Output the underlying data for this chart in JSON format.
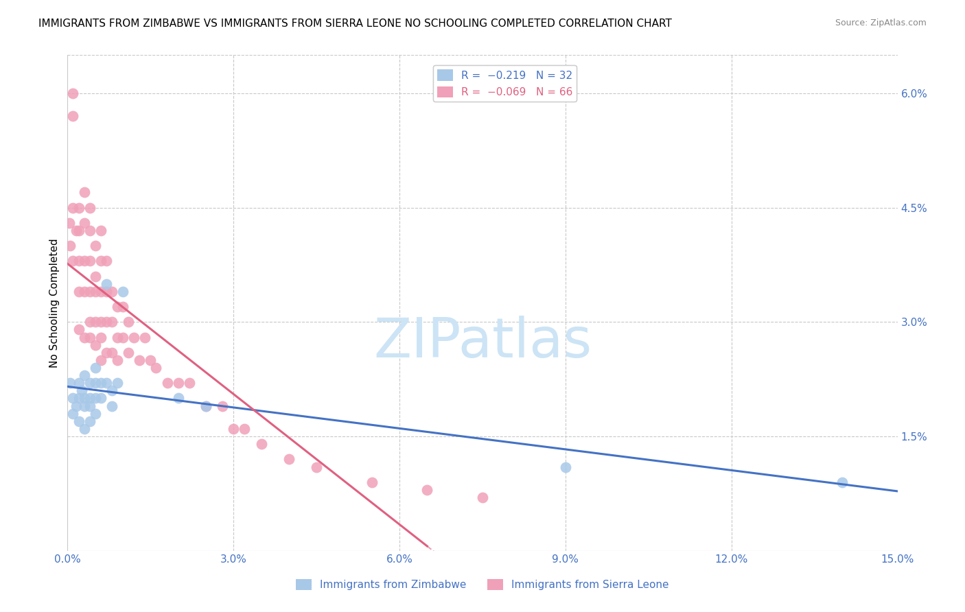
{
  "title": "IMMIGRANTS FROM ZIMBABWE VS IMMIGRANTS FROM SIERRA LEONE NO SCHOOLING COMPLETED CORRELATION CHART",
  "source": "Source: ZipAtlas.com",
  "ylabel": "No Schooling Completed",
  "xlim": [
    0.0,
    0.15
  ],
  "ylim": [
    0.0,
    0.065
  ],
  "xticks": [
    0.0,
    0.03,
    0.06,
    0.09,
    0.12,
    0.15
  ],
  "xtick_labels": [
    "0.0%",
    "3.0%",
    "6.0%",
    "9.0%",
    "12.0%",
    "15.0%"
  ],
  "yticks": [
    0.015,
    0.03,
    0.045,
    0.06
  ],
  "ytick_labels": [
    "1.5%",
    "3.0%",
    "4.5%",
    "6.0%"
  ],
  "watermark": "ZIPatlas",
  "watermark_color": "#cce4f5",
  "title_fontsize": 11,
  "axis_color": "#4472c4",
  "background_color": "#ffffff",
  "grid_color": "#c8c8c8",
  "zimbabwe_color": "#a8c8e8",
  "sierra_leone_color": "#f0a0b8",
  "zimbabwe_line_color": "#4472c4",
  "sierra_leone_line_color": "#e06080",
  "zimbabwe_x": [
    0.0005,
    0.001,
    0.001,
    0.0015,
    0.002,
    0.002,
    0.002,
    0.0025,
    0.003,
    0.003,
    0.003,
    0.003,
    0.004,
    0.004,
    0.004,
    0.004,
    0.005,
    0.005,
    0.005,
    0.005,
    0.006,
    0.006,
    0.007,
    0.007,
    0.008,
    0.008,
    0.009,
    0.01,
    0.02,
    0.025,
    0.09,
    0.14
  ],
  "zimbabwe_y": [
    0.022,
    0.02,
    0.018,
    0.019,
    0.022,
    0.02,
    0.017,
    0.021,
    0.023,
    0.02,
    0.019,
    0.016,
    0.022,
    0.02,
    0.019,
    0.017,
    0.024,
    0.022,
    0.02,
    0.018,
    0.022,
    0.02,
    0.035,
    0.022,
    0.021,
    0.019,
    0.022,
    0.034,
    0.02,
    0.019,
    0.011,
    0.009
  ],
  "sierra_leone_x": [
    0.0003,
    0.0005,
    0.001,
    0.001,
    0.001,
    0.001,
    0.0015,
    0.002,
    0.002,
    0.002,
    0.002,
    0.002,
    0.003,
    0.003,
    0.003,
    0.003,
    0.003,
    0.004,
    0.004,
    0.004,
    0.004,
    0.004,
    0.004,
    0.005,
    0.005,
    0.005,
    0.005,
    0.005,
    0.006,
    0.006,
    0.006,
    0.006,
    0.006,
    0.006,
    0.007,
    0.007,
    0.007,
    0.007,
    0.008,
    0.008,
    0.008,
    0.009,
    0.009,
    0.009,
    0.01,
    0.01,
    0.011,
    0.011,
    0.012,
    0.013,
    0.014,
    0.015,
    0.016,
    0.018,
    0.02,
    0.022,
    0.025,
    0.028,
    0.03,
    0.032,
    0.035,
    0.04,
    0.045,
    0.055,
    0.065,
    0.075
  ],
  "sierra_leone_y": [
    0.043,
    0.04,
    0.06,
    0.057,
    0.045,
    0.038,
    0.042,
    0.045,
    0.042,
    0.038,
    0.034,
    0.029,
    0.047,
    0.043,
    0.038,
    0.034,
    0.028,
    0.045,
    0.042,
    0.038,
    0.034,
    0.03,
    0.028,
    0.04,
    0.036,
    0.034,
    0.03,
    0.027,
    0.042,
    0.038,
    0.034,
    0.03,
    0.028,
    0.025,
    0.038,
    0.034,
    0.03,
    0.026,
    0.034,
    0.03,
    0.026,
    0.032,
    0.028,
    0.025,
    0.032,
    0.028,
    0.03,
    0.026,
    0.028,
    0.025,
    0.028,
    0.025,
    0.024,
    0.022,
    0.022,
    0.022,
    0.019,
    0.019,
    0.016,
    0.016,
    0.014,
    0.012,
    0.011,
    0.009,
    0.008,
    0.007
  ]
}
